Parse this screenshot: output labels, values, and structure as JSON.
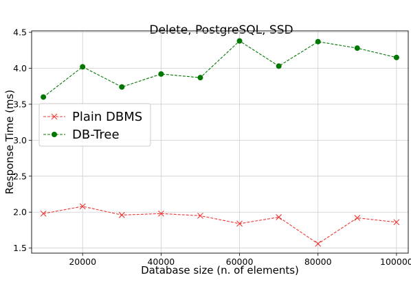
{
  "chart_data": {
    "type": "line",
    "title": "Delete, PostgreSQL, SSD",
    "xlabel": "Database size (n. of elements)",
    "ylabel": "Response Time (ms)",
    "x": [
      10000,
      20000,
      30000,
      40000,
      50000,
      60000,
      70000,
      80000,
      90000,
      100000
    ],
    "xlim": [
      7000,
      103000
    ],
    "ylim": [
      1.43,
      4.52
    ],
    "xticks": [
      20000,
      40000,
      60000,
      80000,
      100000
    ],
    "xtick_labels": [
      "20000",
      "40000",
      "60000",
      "80000",
      "100000"
    ],
    "yticks": [
      1.5,
      2.0,
      2.5,
      3.0,
      3.5,
      4.0,
      4.5
    ],
    "ytick_labels": [
      "1.5",
      "2.0",
      "2.5",
      "3.0",
      "3.5",
      "4.0",
      "4.5"
    ],
    "grid": true,
    "legend_position": "center-left",
    "series": [
      {
        "name": "Plain DBMS",
        "color": "#ee3333",
        "marker": "x",
        "linestyle": "dashed",
        "values": [
          1.98,
          2.08,
          1.96,
          1.98,
          1.95,
          1.84,
          1.93,
          1.56,
          1.92,
          1.86
        ]
      },
      {
        "name": "DB-Tree",
        "color": "#007700",
        "marker": "circle",
        "linestyle": "dashed",
        "values": [
          3.6,
          4.02,
          3.74,
          3.92,
          3.87,
          4.38,
          4.03,
          4.37,
          4.28,
          4.15
        ]
      }
    ]
  }
}
